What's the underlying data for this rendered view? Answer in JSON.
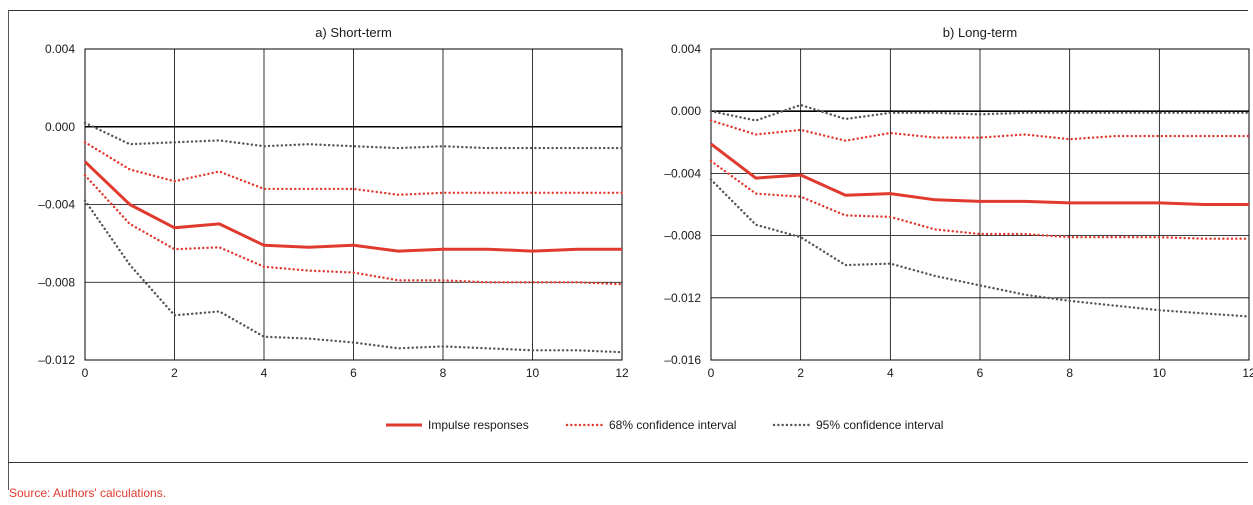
{
  "figure": {
    "source_note": "Source: Authors' calculations.",
    "colors": {
      "impulse": "#e03a2f",
      "ci68": "#e03a2f",
      "ci95": "#555555",
      "grid": "#000000",
      "source_note": "#e03a2f"
    }
  },
  "legend": [
    {
      "label": "Impulse responses",
      "style": "solid",
      "color": "#e03a2f"
    },
    {
      "label": "68% confidence interval",
      "style": "dotted",
      "color": "#e03a2f"
    },
    {
      "label": "95% confidence interval",
      "style": "dotted",
      "color": "#555555"
    }
  ],
  "chart_data": [
    {
      "type": "line",
      "title": "a) Short-term",
      "x": [
        0,
        1,
        2,
        3,
        4,
        5,
        6,
        7,
        8,
        9,
        10,
        11,
        12
      ],
      "x_ticks": [
        0,
        2,
        4,
        6,
        8,
        10,
        12
      ],
      "x_tick_labels": [
        "0",
        "2",
        "4",
        "6",
        "8",
        "10",
        "12"
      ],
      "y_ticks": [
        0.004,
        0.0,
        -0.004,
        -0.008,
        -0.012
      ],
      "y_tick_labels": [
        "0.004",
        "0.000",
        "–0.004",
        "–0.008",
        "–0.012"
      ],
      "xlim": [
        0,
        12
      ],
      "ylim": [
        -0.012,
        0.004
      ],
      "grid": true,
      "zero_line": true,
      "series": [
        {
          "name": "Impulse responses",
          "values": [
            -0.0018,
            -0.004,
            -0.0052,
            -0.005,
            -0.0061,
            -0.0062,
            -0.0061,
            -0.0064,
            -0.0063,
            -0.0063,
            -0.0064,
            -0.0063,
            -0.0063
          ]
        },
        {
          "name": "68% confidence interval",
          "values": [
            -0.0008,
            -0.0022,
            -0.0028,
            -0.0023,
            -0.0032,
            -0.0032,
            -0.0032,
            -0.0035,
            -0.0034,
            -0.0034,
            -0.0034,
            -0.0034,
            -0.0034
          ]
        },
        {
          "name": "68% confidence interval",
          "values": [
            -0.0025,
            -0.005,
            -0.0063,
            -0.0062,
            -0.0072,
            -0.0074,
            -0.0075,
            -0.0079,
            -0.0079,
            -0.008,
            -0.008,
            -0.008,
            -0.0081
          ]
        },
        {
          "name": "95% confidence interval",
          "values": [
            0.0002,
            -0.0009,
            -0.0008,
            -0.0007,
            -0.001,
            -0.0009,
            -0.001,
            -0.0011,
            -0.001,
            -0.0011,
            -0.0011,
            -0.0011,
            -0.0011
          ]
        },
        {
          "name": "95% confidence interval",
          "values": [
            -0.0038,
            -0.0071,
            -0.0097,
            -0.0095,
            -0.0108,
            -0.0109,
            -0.0111,
            -0.0114,
            -0.0113,
            -0.0114,
            -0.0115,
            -0.0115,
            -0.0116
          ]
        }
      ]
    },
    {
      "type": "line",
      "title": "b) Long-term",
      "x": [
        0,
        1,
        2,
        3,
        4,
        5,
        6,
        7,
        8,
        9,
        10,
        11,
        12
      ],
      "x_ticks": [
        0,
        2,
        4,
        6,
        8,
        10,
        12
      ],
      "x_tick_labels": [
        "0",
        "2",
        "4",
        "6",
        "8",
        "10",
        "12"
      ],
      "y_ticks": [
        0.004,
        0.0,
        -0.004,
        -0.008,
        -0.012,
        -0.016
      ],
      "y_tick_labels": [
        "0.004",
        "0.000",
        "–0.004",
        "–0.008",
        "–0.012",
        "–0.016"
      ],
      "xlim": [
        0,
        12
      ],
      "ylim": [
        -0.016,
        0.004
      ],
      "grid": true,
      "zero_line": true,
      "series": [
        {
          "name": "Impulse responses",
          "values": [
            -0.0021,
            -0.0043,
            -0.0041,
            -0.0054,
            -0.0053,
            -0.0057,
            -0.0058,
            -0.0058,
            -0.0059,
            -0.0059,
            -0.0059,
            -0.006,
            -0.006
          ]
        },
        {
          "name": "68% confidence interval",
          "values": [
            -0.0006,
            -0.0015,
            -0.0012,
            -0.0019,
            -0.0014,
            -0.0017,
            -0.0017,
            -0.0015,
            -0.0018,
            -0.0016,
            -0.0016,
            -0.0016,
            -0.0016
          ]
        },
        {
          "name": "68% confidence interval",
          "values": [
            -0.0032,
            -0.0053,
            -0.0055,
            -0.0067,
            -0.0068,
            -0.0076,
            -0.0079,
            -0.0079,
            -0.0081,
            -0.0081,
            -0.0081,
            -0.0082,
            -0.0082
          ]
        },
        {
          "name": "95% confidence interval",
          "values": [
            0.0,
            -0.0006,
            0.0004,
            -0.0005,
            -0.0001,
            -0.0001,
            -0.0002,
            -0.0001,
            -0.0001,
            -0.0001,
            -0.0001,
            -0.0001,
            -0.0001
          ]
        },
        {
          "name": "95% confidence interval",
          "values": [
            -0.0044,
            -0.0073,
            -0.0081,
            -0.0099,
            -0.0098,
            -0.0106,
            -0.0112,
            -0.0118,
            -0.0122,
            -0.0125,
            -0.0128,
            -0.013,
            -0.0132
          ]
        }
      ]
    }
  ]
}
